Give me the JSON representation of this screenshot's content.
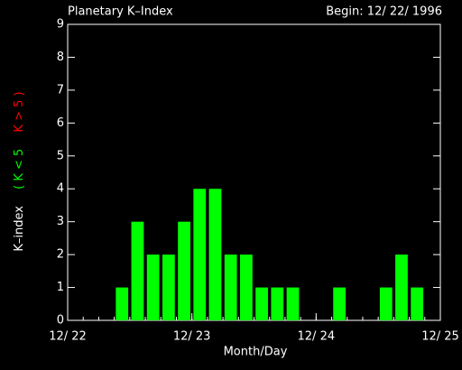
{
  "chart_data": {
    "type": "bar",
    "title": "Planetary K–Index",
    "subtitle": "Begin: 12/ 22/ 1996",
    "xlabel": "Month/Day",
    "ylabel": "K–index",
    "ylabel_low": "( K < 5",
    "ylabel_high": "K > 5 )",
    "low_color": "#00ff00",
    "high_color": "#ff0000",
    "color": "#00ff00",
    "x": [
      0,
      3,
      6,
      9,
      12,
      15,
      18,
      21,
      24,
      27,
      30,
      33,
      36,
      39,
      42,
      45,
      48,
      51,
      54,
      57,
      60,
      63,
      66,
      69
    ],
    "values": [
      0,
      0,
      0,
      1,
      3,
      2,
      2,
      3,
      4,
      4,
      2,
      2,
      1,
      1,
      1,
      0,
      0,
      1,
      0,
      0,
      1,
      2,
      1,
      0
    ],
    "bin_width": 3,
    "xlim": [
      0,
      72
    ],
    "xticks": [
      {
        "value": 0,
        "label": "12/ 22"
      },
      {
        "value": 24,
        "label": "12/ 23"
      },
      {
        "value": 48,
        "label": "12/ 24"
      },
      {
        "value": 72,
        "label": "12/ 25"
      }
    ],
    "ylim": [
      0,
      9
    ],
    "yticks": [
      0,
      1,
      2,
      3,
      4,
      5,
      6,
      7,
      8,
      9
    ]
  }
}
